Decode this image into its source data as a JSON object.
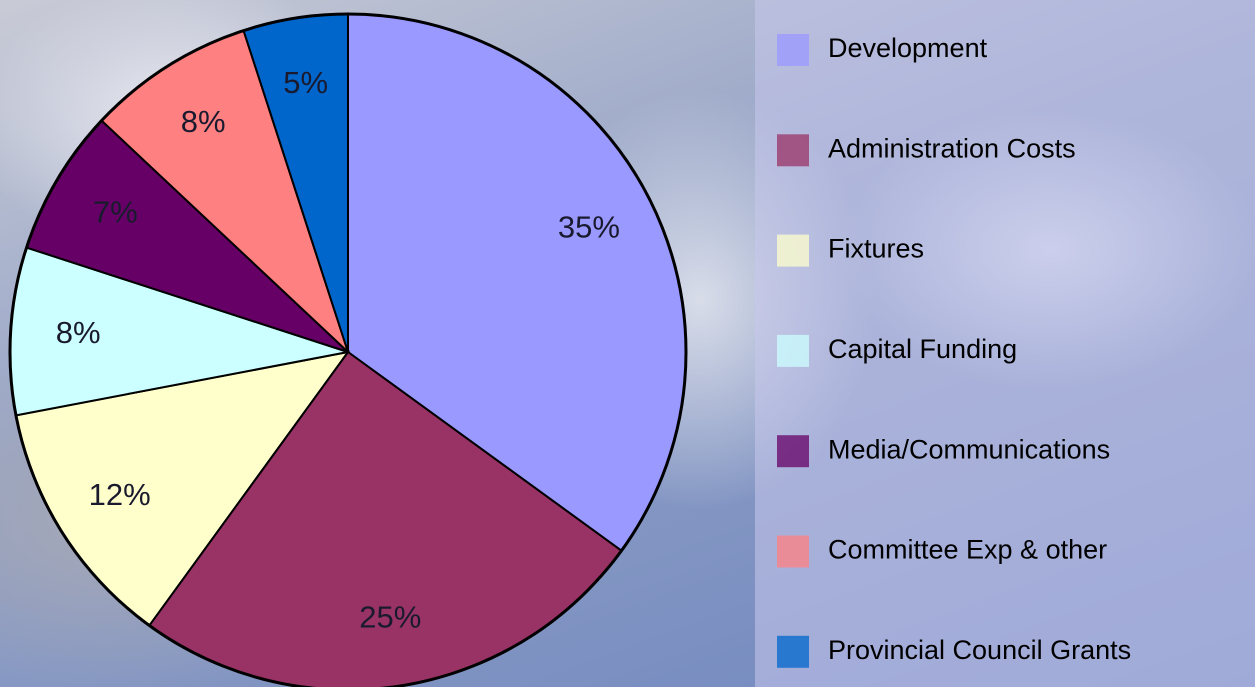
{
  "chart_data": {
    "type": "pie",
    "categories": [
      "Development",
      "Administration Costs",
      "Fixtures",
      "Capital Funding",
      "Media/Communications",
      "Committee Exp & other",
      "Provincial Council Grants"
    ],
    "values": [
      35,
      25,
      12,
      8,
      7,
      8,
      5
    ],
    "value_labels": [
      "35%",
      "25%",
      "12%",
      "8%",
      "7%",
      "8%",
      "5%"
    ],
    "colors": [
      "#9999ff",
      "#993366",
      "#ffffcc",
      "#ccffff",
      "#660066",
      "#ff8080",
      "#0066cc"
    ]
  }
}
